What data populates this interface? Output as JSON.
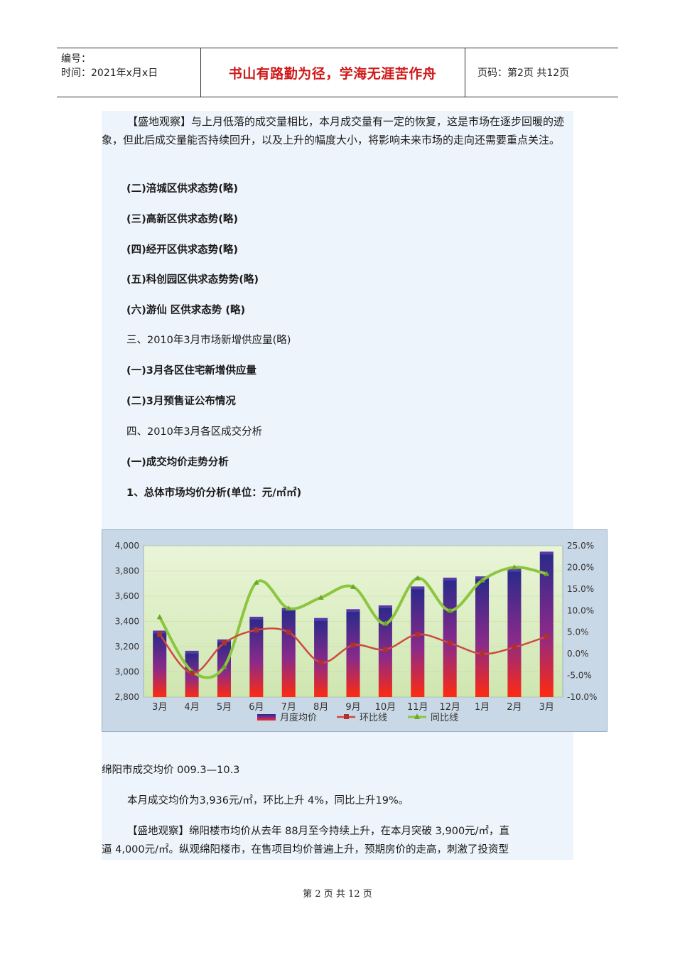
{
  "header": {
    "doc_no_label": "编号：",
    "time_label": "时间：2021年x月x日",
    "motto": "书山有路勤为径，学海无涯苦作舟",
    "page_label": "页码：第2页  共12页"
  },
  "body": {
    "p1": "【盛地观察】与上月低落的成交量相比，本月成交量有一定的恢复，这是市场在逐步回暖的迹象，但此后成交量能否持续回升，以及上升的幅度大小，将影响未来市场的走向还需要重点关注。",
    "h_fucheng": "(二)涪城区供求态势(略)",
    "h_gaoxin": "(三)高新区供求态势(略)",
    "h_jingkai": "(四)经开区供求态势(略)",
    "h_kechuang": "(五)科创园区供求态势势(略)",
    "h_youxian": "(六)游仙  区供求态势  (略)",
    "s3": "三、2010年3月市场新增供应量(略)",
    "h_new1": "(一)3月各区住宅新增供应量",
    "h_new2": "(二)3月预售证公布情况",
    "s4": "四、2010年3月各区成交分析",
    "h_price": "(一)成交均价走势分析",
    "h_total": "1、总体市场均价分析(单位：元/㎡㎡)",
    "caption": "绵阳市成交均价  009.3—10.3",
    "p2": "本月成交均价为3,936元/㎡，环比上升  4%，同比上升19%。",
    "p3_l1": "【盛地观察】绵阳楼市均价从去年   88月至今持续上升，在本月突破   3,900元/㎡，直",
    "p3_l2": "逼  4,000元/㎡。纵观绵阳楼市，在售项目均价普遍上升，预期房价的走高，刺激了投资型"
  },
  "footer": {
    "text": "第 2 页 共 12 页"
  },
  "chart_data": {
    "type": "bar",
    "categories": [
      "3月",
      "4月",
      "5月",
      "6月",
      "7月",
      "8月",
      "9月",
      "10月",
      "11月",
      "12月",
      "1月",
      "2月",
      "3月"
    ],
    "series": [
      {
        "name": "月度均价",
        "axis": "left",
        "values": [
          3310,
          3150,
          3240,
          3420,
          3490,
          3410,
          3480,
          3510,
          3660,
          3730,
          3740,
          3800,
          3936
        ]
      },
      {
        "name": "环比线",
        "axis": "right",
        "values": [
          4.5,
          -4.5,
          2.5,
          5.5,
          5.0,
          -2.0,
          2.0,
          1.0,
          4.5,
          2.5,
          0.0,
          1.5,
          4.0
        ]
      },
      {
        "name": "同比线",
        "axis": "right",
        "values": [
          8.5,
          -4.0,
          -3.0,
          16.5,
          10.5,
          13.0,
          15.5,
          7.0,
          17.5,
          10.0,
          17.0,
          20.0,
          18.5
        ]
      }
    ],
    "y_left": {
      "ticks": [
        "2,800",
        "3,000",
        "3,200",
        "3,400",
        "3,600",
        "3,800",
        "4,000"
      ],
      "range": [
        2800,
        4000
      ]
    },
    "y_right": {
      "ticks": [
        "-10.0%",
        "-5.0%",
        "0.0%",
        "5.0%",
        "10.0%",
        "15.0%",
        "20.0%",
        "25.0%"
      ],
      "range": [
        -10,
        25
      ]
    },
    "legend_position": "bottom",
    "colors": {
      "bar_top": "#2a2a8a",
      "bar_bottom": "#ff2a10",
      "mom": "#cc4a40",
      "yoy": "#8cc63e",
      "plot_bg": "#dff0c8",
      "frame_bg": "#c9d8e6"
    }
  }
}
